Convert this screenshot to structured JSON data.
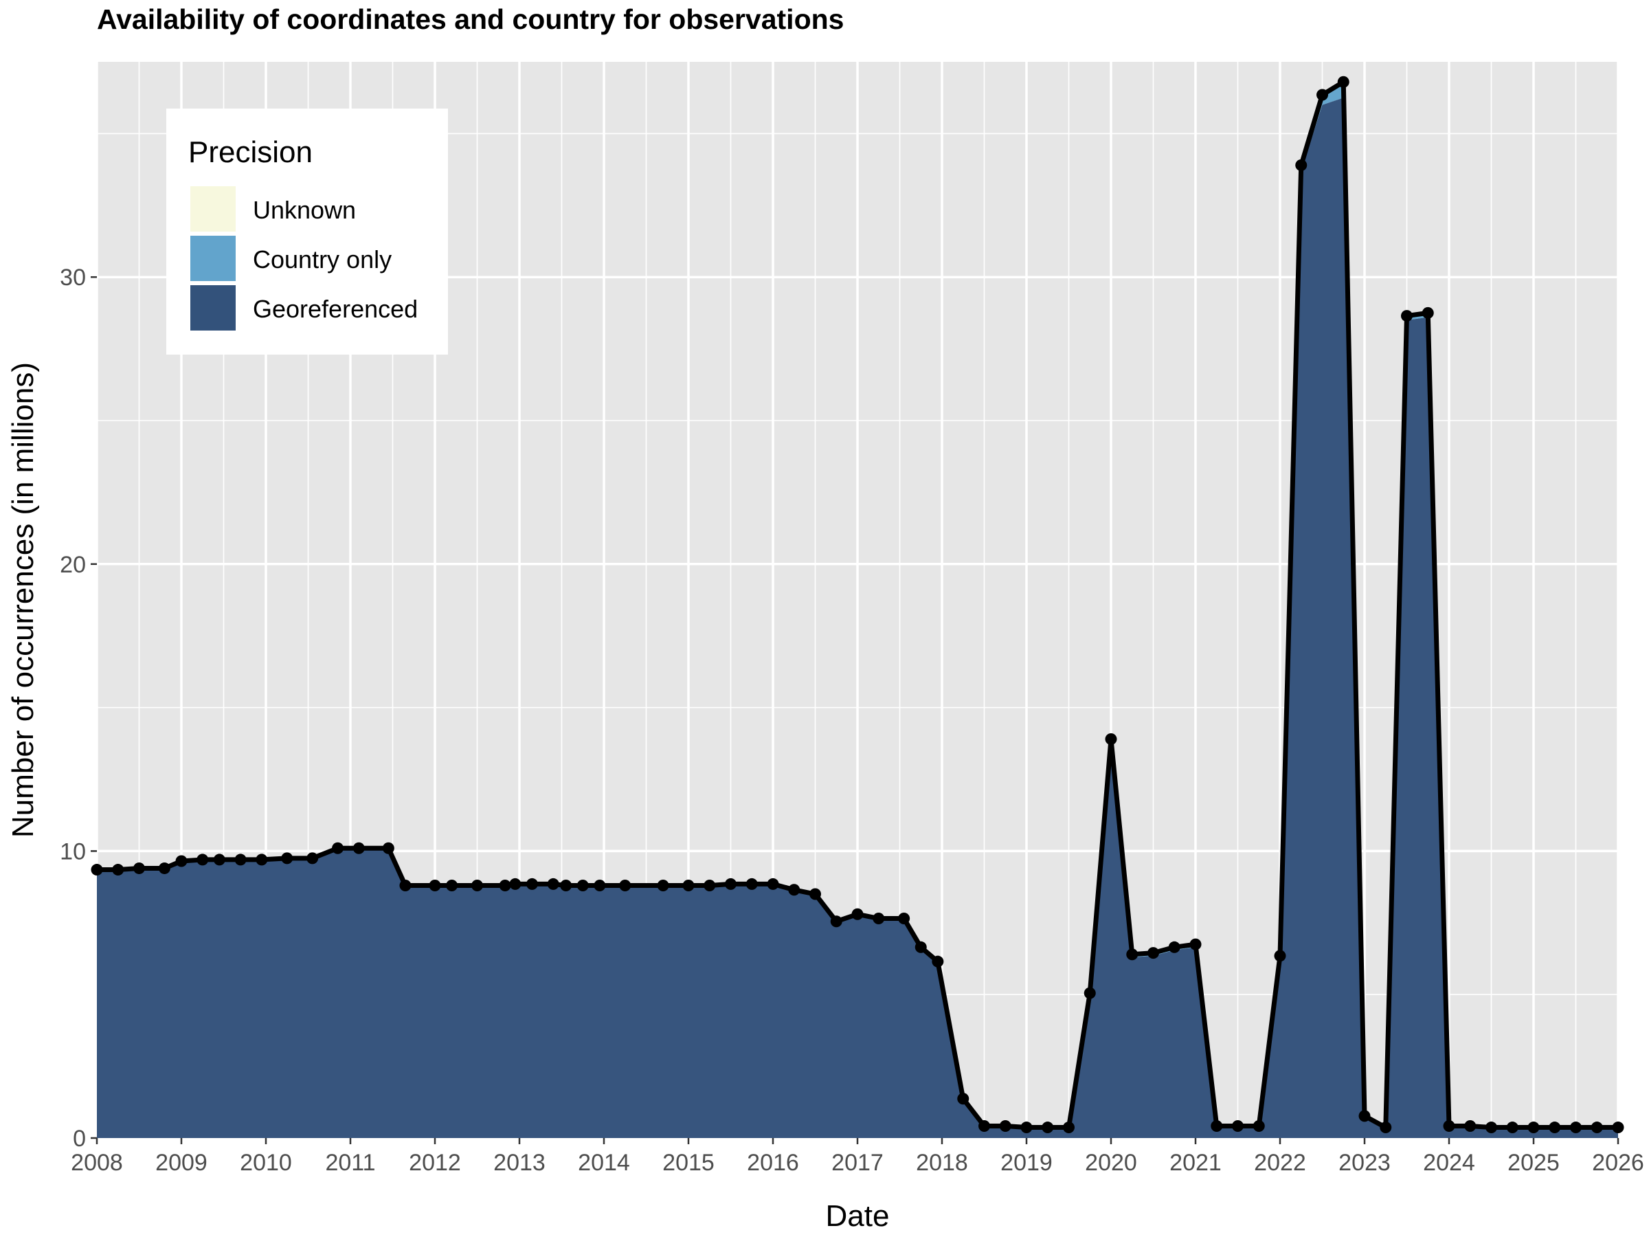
{
  "chart_data": {
    "type": "area",
    "title": "Availability of coordinates and country for observations",
    "xlabel": "Date",
    "ylabel": "Number of occurrences (in millions)",
    "xlim": [
      2008,
      2026
    ],
    "ylim": [
      0,
      37.5
    ],
    "x_ticks": [
      "2008",
      "2009",
      "2010",
      "2011",
      "2012",
      "2013",
      "2014",
      "2015",
      "2016",
      "2017",
      "2018",
      "2019",
      "2020",
      "2021",
      "2022",
      "2023",
      "2024",
      "2025",
      "2026"
    ],
    "y_ticks": [
      "0",
      "10",
      "20",
      "30"
    ],
    "grid": true,
    "legend": {
      "title": "Precision",
      "position": "top-left",
      "items": [
        {
          "label": "Unknown",
          "color": "#f7f8de"
        },
        {
          "label": "Country only",
          "color": "#62a4cc"
        },
        {
          "label": "Georeferenced",
          "color": "#33527b"
        }
      ]
    },
    "colors": {
      "panel": "#e6e6e6",
      "grid": "#ffffff",
      "total_line": "#000000"
    },
    "x": [
      2008.0,
      2008.25,
      2008.5,
      2008.8,
      2009.0,
      2009.25,
      2009.45,
      2009.7,
      2009.95,
      2010.25,
      2010.55,
      2010.85,
      2011.1,
      2011.45,
      2011.65,
      2012.0,
      2012.2,
      2012.5,
      2012.83,
      2012.95,
      2013.15,
      2013.4,
      2013.55,
      2013.75,
      2013.95,
      2014.25,
      2014.7,
      2015.0,
      2015.25,
      2015.5,
      2015.75,
      2016.0,
      2016.25,
      2016.5,
      2016.75,
      2017.0,
      2017.25,
      2017.55,
      2017.75,
      2017.95,
      2018.25,
      2018.5,
      2018.75,
      2019.0,
      2019.25,
      2019.5,
      2019.75,
      2020.0,
      2020.25,
      2020.5,
      2020.75,
      2021.0,
      2021.25,
      2021.5,
      2021.75,
      2022.0,
      2022.25,
      2022.5,
      2022.75,
      2023.0,
      2023.25,
      2023.5,
      2023.75,
      2024.0,
      2024.25,
      2024.5,
      2024.75,
      2025.0,
      2025.25,
      2025.5,
      2025.75,
      2026.0
    ],
    "series": [
      {
        "name": "Georeferenced",
        "values": [
          9.3,
          9.3,
          9.35,
          9.35,
          9.6,
          9.65,
          9.65,
          9.65,
          9.65,
          9.7,
          9.7,
          10.05,
          10.05,
          10.05,
          8.75,
          8.75,
          8.75,
          8.75,
          8.75,
          8.8,
          8.8,
          8.8,
          8.75,
          8.75,
          8.75,
          8.75,
          8.75,
          8.75,
          8.75,
          8.8,
          8.8,
          8.8,
          8.6,
          8.45,
          7.5,
          7.75,
          7.6,
          7.6,
          6.6,
          6.1,
          1.35,
          0.4,
          0.4,
          0.35,
          0.35,
          0.35,
          5.0,
          13.8,
          6.3,
          6.35,
          6.55,
          6.65,
          0.4,
          0.4,
          0.4,
          6.3,
          33.7,
          36.0,
          36.25,
          0.75,
          0.35,
          28.5,
          28.6,
          0.4,
          0.4,
          0.35,
          0.35,
          0.35,
          0.35,
          0.35,
          0.35,
          0.35
        ]
      },
      {
        "name": "Country only",
        "values": [
          0.05,
          0.05,
          0.05,
          0.05,
          0.05,
          0.05,
          0.05,
          0.05,
          0.05,
          0.05,
          0.05,
          0.05,
          0.05,
          0.05,
          0.05,
          0.05,
          0.05,
          0.05,
          0.05,
          0.05,
          0.05,
          0.05,
          0.05,
          0.05,
          0.05,
          0.05,
          0.05,
          0.05,
          0.05,
          0.05,
          0.05,
          0.05,
          0.05,
          0.05,
          0.05,
          0.05,
          0.05,
          0.05,
          0.05,
          0.05,
          0.02,
          0.02,
          0.02,
          0.02,
          0.02,
          0.02,
          0.05,
          0.1,
          0.1,
          0.1,
          0.1,
          0.1,
          0.02,
          0.02,
          0.02,
          0.05,
          0.2,
          0.35,
          0.55,
          0.02,
          0.02,
          0.15,
          0.15,
          0.02,
          0.02,
          0.02,
          0.02,
          0.02,
          0.02,
          0.02,
          0.02,
          0.02
        ]
      },
      {
        "name": "Unknown",
        "values": [
          0,
          0,
          0,
          0,
          0,
          0,
          0,
          0,
          0,
          0,
          0,
          0,
          0,
          0,
          0,
          0,
          0,
          0,
          0,
          0,
          0,
          0,
          0,
          0,
          0,
          0,
          0,
          0,
          0,
          0,
          0,
          0,
          0,
          0,
          0,
          0,
          0,
          0,
          0,
          0,
          0,
          0,
          0,
          0,
          0,
          0,
          0,
          0,
          0,
          0,
          0,
          0,
          0,
          0,
          0,
          0,
          0,
          0,
          0,
          0,
          0,
          0,
          0,
          0,
          0,
          0,
          0,
          0,
          0,
          0,
          0,
          0
        ]
      }
    ],
    "total": [
      9.35,
      9.35,
      9.4,
      9.4,
      9.65,
      9.7,
      9.7,
      9.7,
      9.7,
      9.75,
      9.75,
      10.1,
      10.1,
      10.1,
      8.8,
      8.8,
      8.8,
      8.8,
      8.8,
      8.85,
      8.85,
      8.85,
      8.8,
      8.8,
      8.8,
      8.8,
      8.8,
      8.8,
      8.8,
      8.85,
      8.85,
      8.85,
      8.65,
      8.5,
      7.55,
      7.8,
      7.65,
      7.65,
      6.65,
      6.15,
      1.37,
      0.42,
      0.42,
      0.37,
      0.37,
      0.37,
      5.05,
      13.9,
      6.4,
      6.45,
      6.65,
      6.75,
      0.42,
      0.42,
      0.42,
      6.35,
      33.9,
      36.35,
      36.8,
      0.77,
      0.37,
      28.65,
      28.75,
      0.42,
      0.42,
      0.37,
      0.37,
      0.37,
      0.37,
      0.37,
      0.37,
      0.37
    ]
  }
}
